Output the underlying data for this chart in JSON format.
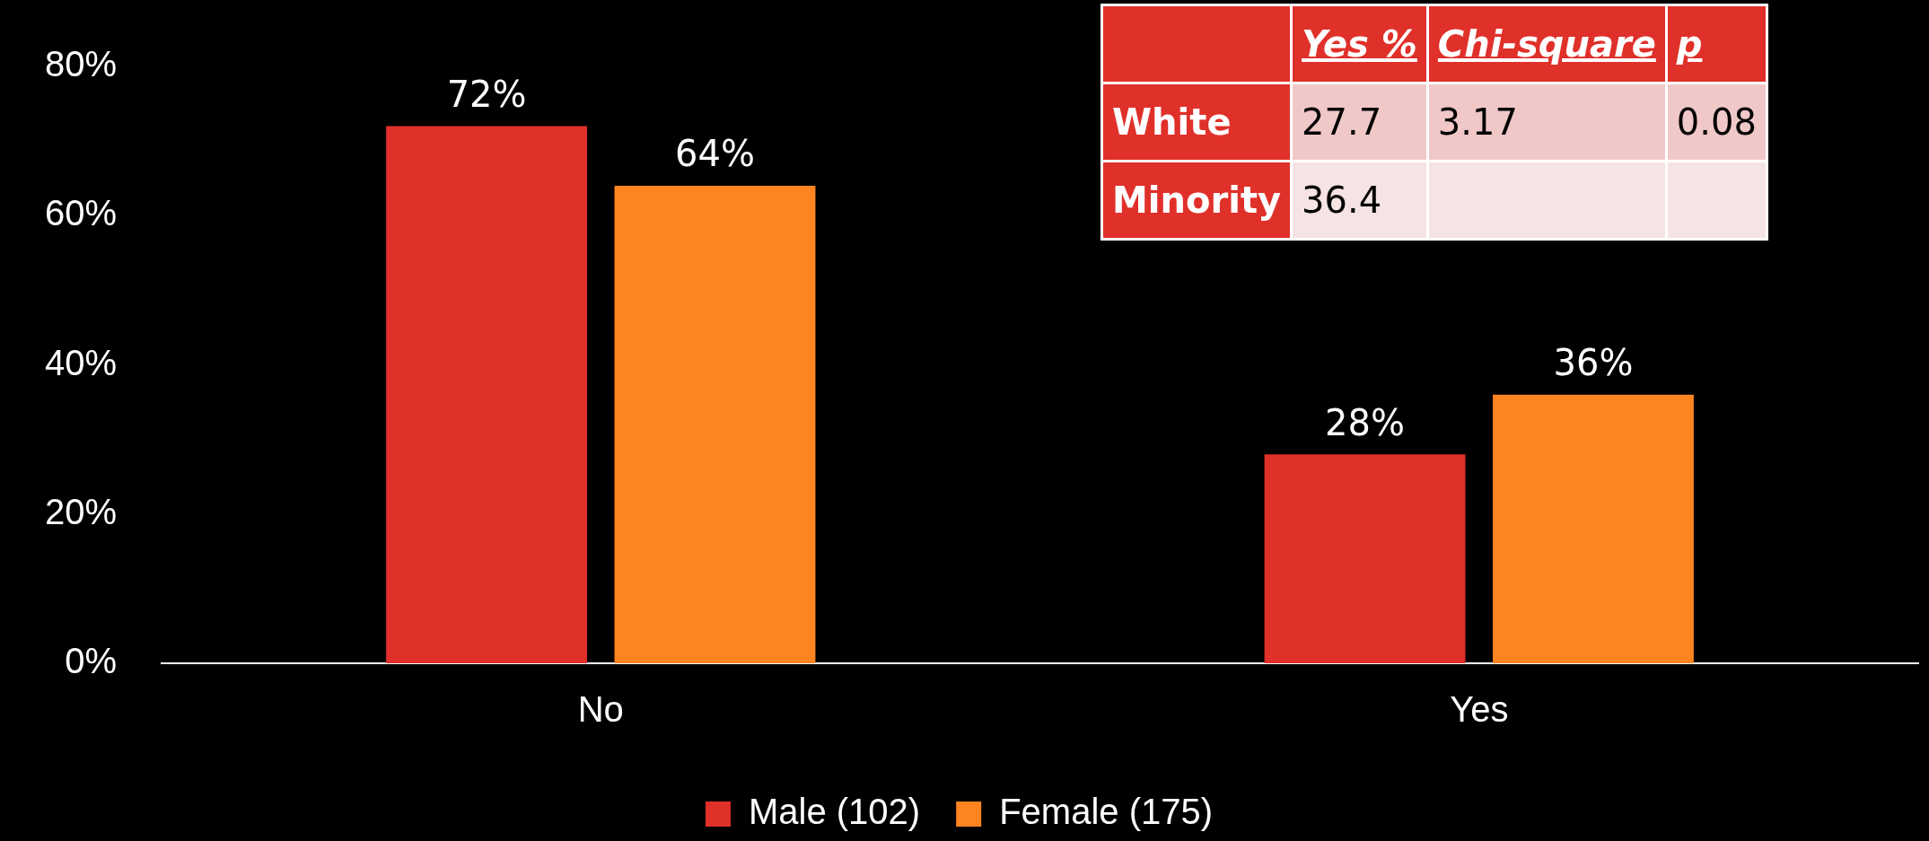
{
  "chart_data": {
    "type": "bar",
    "categories": [
      "No",
      "Yes"
    ],
    "series": [
      {
        "name": "Male (102)",
        "color": "#e0302a",
        "values": [
          72,
          28
        ]
      },
      {
        "name": "Female (175)",
        "color": "#fd8421",
        "values": [
          64,
          36
        ]
      }
    ],
    "ylim": [
      0,
      80
    ],
    "yticks": [
      {
        "value": 0,
        "label": "0%"
      },
      {
        "value": 20,
        "label": "20%"
      },
      {
        "value": 40,
        "label": "40%"
      },
      {
        "value": 60,
        "label": "60%"
      },
      {
        "value": 80,
        "label": "80%"
      }
    ],
    "value_labels": [
      [
        "72%",
        "28%"
      ],
      [
        "64%",
        "36%"
      ]
    ],
    "grid": false,
    "legend": "bottom",
    "annotations": [
      "Yes %",
      "Chi-square",
      "p",
      "White",
      "27.7",
      "3.17",
      "0.08",
      "Minority",
      "36.4"
    ]
  }
}
